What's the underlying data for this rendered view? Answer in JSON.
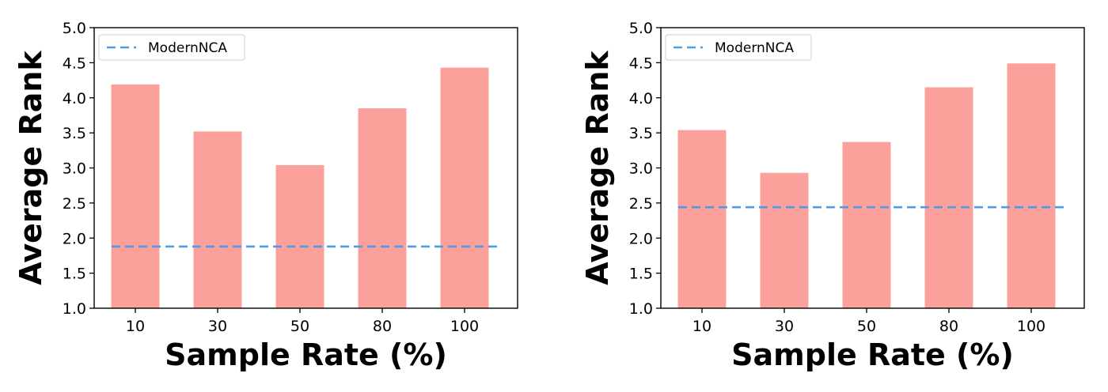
{
  "chart_data": [
    {
      "type": "bar",
      "categories": [
        "10",
        "30",
        "50",
        "80",
        "100"
      ],
      "values": [
        4.19,
        3.52,
        3.04,
        3.85,
        4.43
      ],
      "bar_color": "#fca09c",
      "baseline": {
        "name": "ModernNCA",
        "value": 1.88,
        "color": "#4f9be8",
        "style": "dashed"
      },
      "xlabel": "Sample Rate (%)",
      "ylabel": "Average Rank",
      "ylim": [
        1.0,
        5.0
      ],
      "yticks": [
        "1.0",
        "1.5",
        "2.0",
        "2.5",
        "3.0",
        "3.5",
        "4.0",
        "4.5",
        "5.0"
      ],
      "grid": false,
      "legend_position": "top-left"
    },
    {
      "type": "bar",
      "categories": [
        "10",
        "30",
        "50",
        "80",
        "100"
      ],
      "values": [
        3.54,
        2.93,
        3.37,
        4.15,
        4.49
      ],
      "bar_color": "#fca09c",
      "baseline": {
        "name": "ModernNCA",
        "value": 2.44,
        "color": "#4f9be8",
        "style": "dashed"
      },
      "xlabel": "Sample Rate (%)",
      "ylabel": "Average Rank",
      "ylim": [
        1.0,
        5.0
      ],
      "yticks": [
        "1.0",
        "1.5",
        "2.0",
        "2.5",
        "3.0",
        "3.5",
        "4.0",
        "4.5",
        "5.0"
      ],
      "grid": false,
      "legend_position": "top-left"
    }
  ]
}
